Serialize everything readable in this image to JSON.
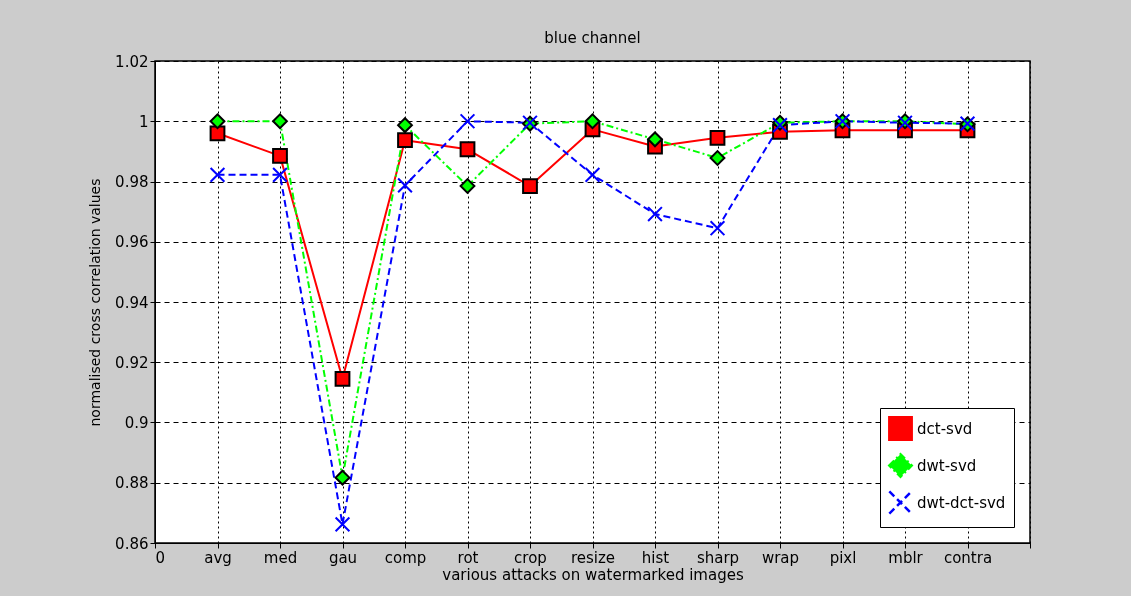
{
  "chart_data": {
    "type": "line",
    "title": "blue channel",
    "xlabel": "various attacks on watermarked images",
    "ylabel": "normalised cross correlation values",
    "categories": [
      "0",
      "avg",
      "med",
      "gau",
      "comp",
      "rot",
      "crop",
      "resize",
      "hist",
      "sharp",
      "wrap",
      "pixl",
      "mblr",
      "contra",
      null
    ],
    "ylim": [
      0.86,
      1.02
    ],
    "yticks": [
      0.86,
      0.88,
      0.9,
      0.92,
      0.94,
      0.96,
      0.98,
      1,
      1.02
    ],
    "series": [
      {
        "name": "dct-svd",
        "color": "#ff0000",
        "marker": "square",
        "line_style": "solid",
        "values": [
          null,
          0.996,
          0.9885,
          0.9145,
          0.9937,
          0.9907,
          0.9785,
          0.9973,
          0.9916,
          0.9945,
          0.9965,
          0.997,
          0.997,
          0.997,
          null
        ]
      },
      {
        "name": "dwt-svd",
        "color": "#00ff00",
        "marker": "diamond",
        "line_style": "dashdot",
        "values": [
          null,
          1,
          1,
          0.8817,
          0.9987,
          0.9785,
          0.9992,
          1,
          0.994,
          0.9878,
          0.9995,
          1,
          1,
          0.999,
          null
        ]
      },
      {
        "name": "dwt-dct-svd",
        "color": "#0000ff",
        "marker": "cross",
        "line_style": "dashed",
        "values": [
          null,
          0.9822,
          0.9822,
          0.8662,
          0.9787,
          1,
          0.9995,
          0.9822,
          0.9692,
          0.9645,
          0.9987,
          1,
          0.9995,
          0.9992,
          null
        ]
      }
    ],
    "grid": true,
    "legend": "bottom right"
  }
}
